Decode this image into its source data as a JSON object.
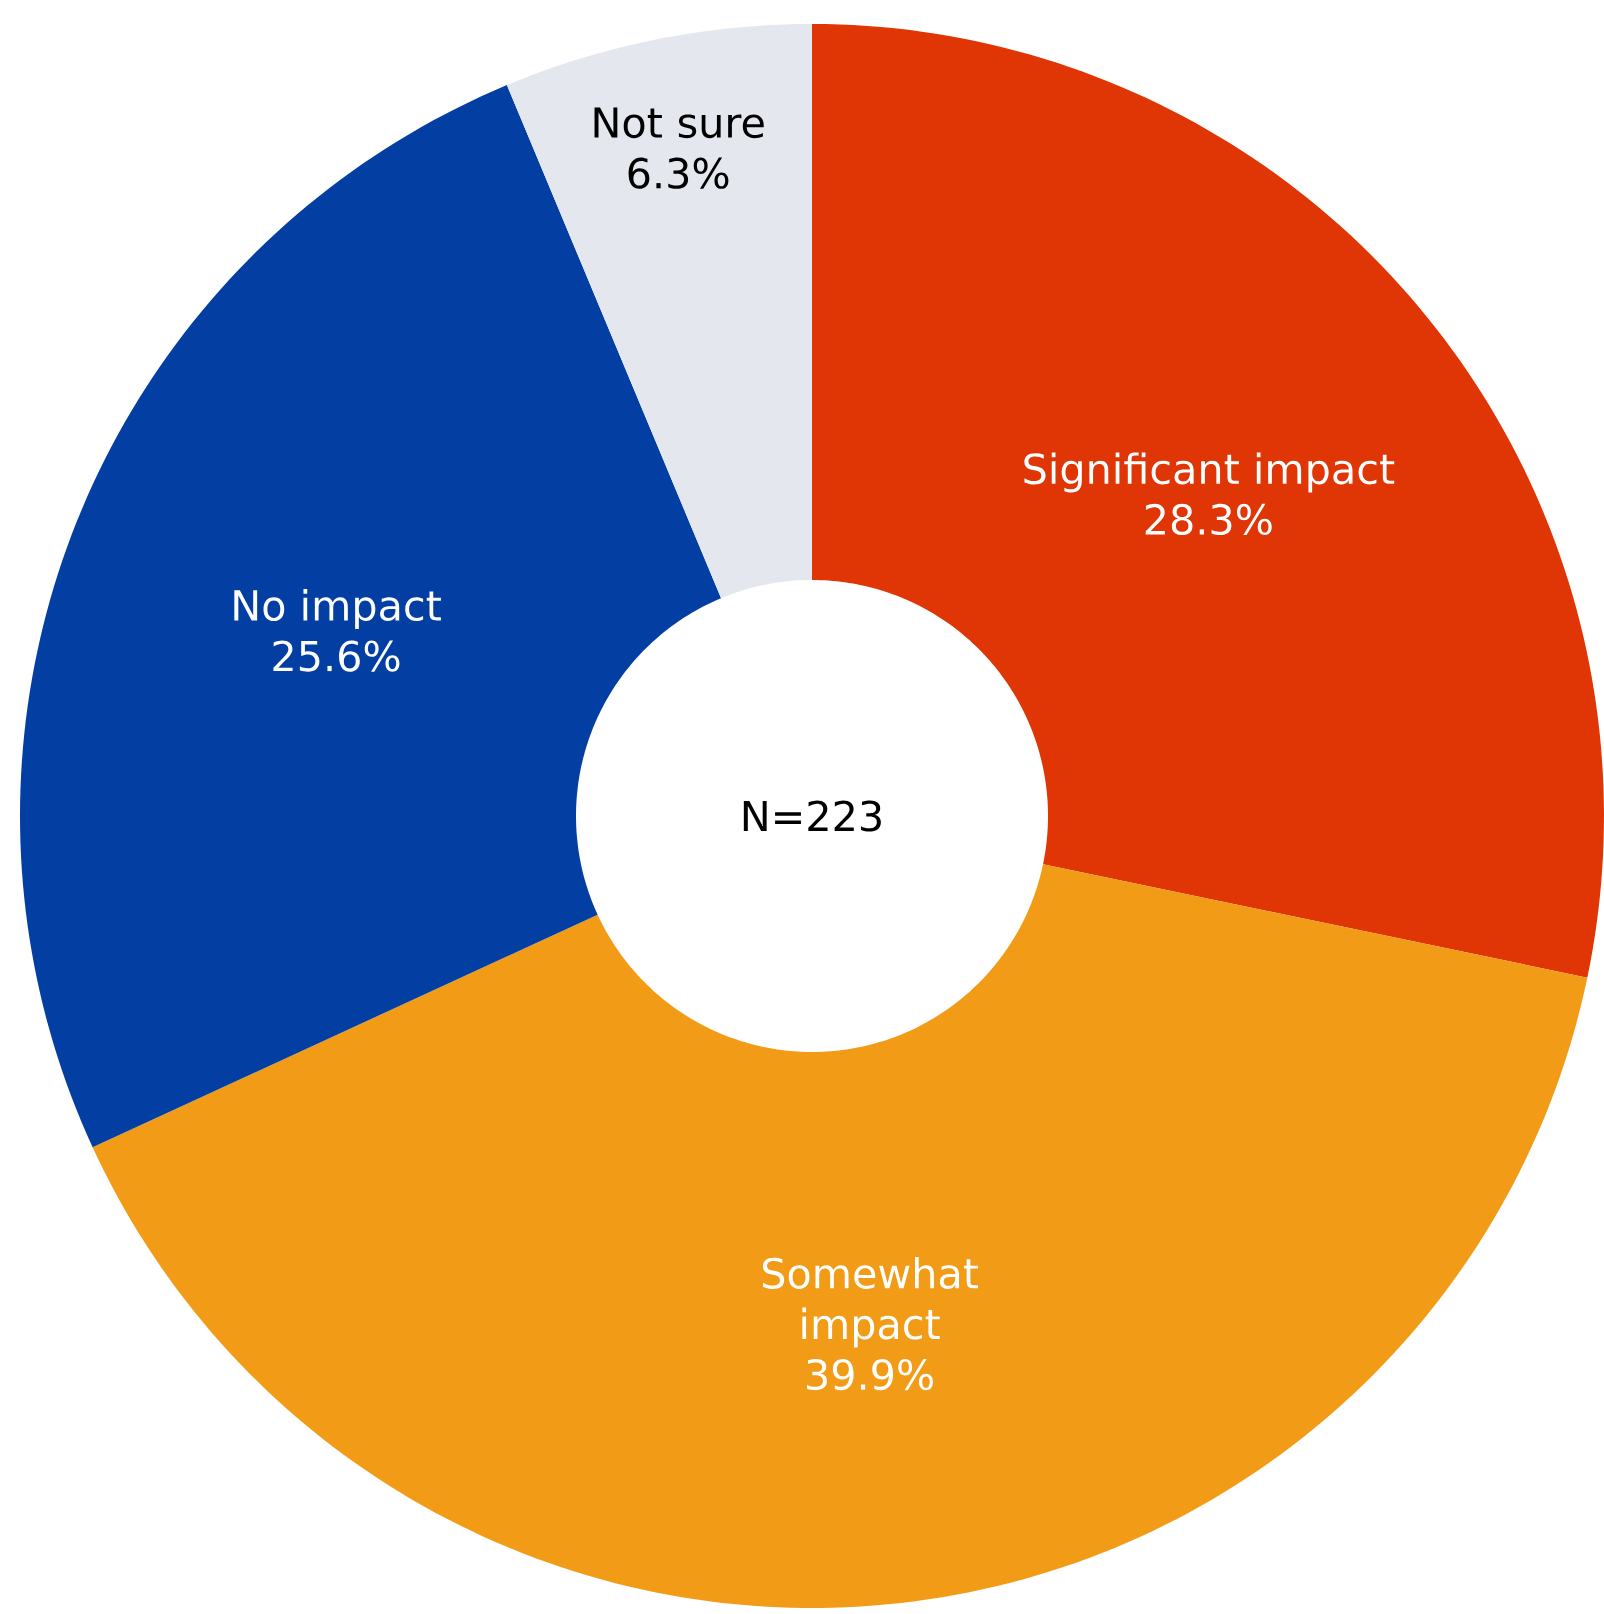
{
  "chart_data": {
    "type": "donut",
    "categories": [
      "Significant impact",
      "Somewhat impact",
      "No impact",
      "Not sure"
    ],
    "values": [
      28.3,
      39.9,
      25.6,
      6.3
    ],
    "value_labels": [
      "28.3%",
      "39.9%",
      "25.6%",
      "6.3%"
    ],
    "colors": [
      "#e03505",
      "#f29b17",
      "#033fa3",
      "#e4e8ee"
    ],
    "annotations": [
      "N=223"
    ]
  }
}
